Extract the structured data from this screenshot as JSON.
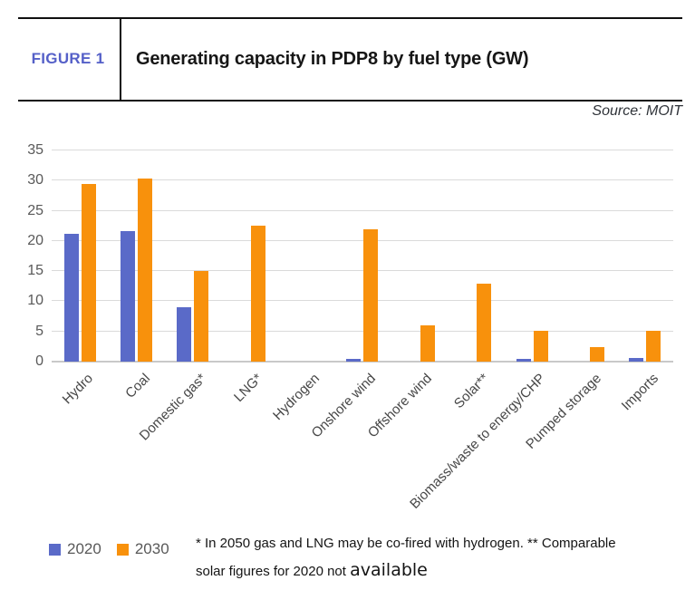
{
  "figure": {
    "label": "FIGURE 1",
    "title": "Generating capacity in PDP8 by fuel type (GW)"
  },
  "source_note": "Source: MOIT",
  "chart_data": {
    "type": "bar",
    "title": "Generating capacity in PDP8 by fuel type (GW)",
    "categories": [
      "Hydro",
      "Coal",
      "Domestic gas*",
      "LNG*",
      "Hydrogen",
      "Onshore wind",
      "Offshore wind",
      "Solar**",
      "Biomass/waste to energy/CHP",
      "Pumped storage",
      "Imports"
    ],
    "series": [
      {
        "name": "2020",
        "color": "#5a6ac8",
        "values": [
          21.2,
          21.6,
          9.0,
          0,
          0,
          0.5,
          0,
          0,
          0.4,
          0,
          0.6
        ]
      },
      {
        "name": "2030",
        "color": "#f8910c",
        "values": [
          29.4,
          30.3,
          15.0,
          22.6,
          0,
          21.9,
          6.0,
          12.9,
          5.1,
          2.4,
          5.1
        ]
      }
    ],
    "xlabel": "",
    "ylabel": "",
    "ylim": [
      0,
      35
    ],
    "ytick_step": 5,
    "grid": true,
    "legend_position": "bottom-left",
    "colors": {
      "gridline": "#dadada",
      "axis_line": "#c9c9c9",
      "y_tick_text": "#595959",
      "x_tick_text": "#474747",
      "figure_label": "#5560c8"
    }
  },
  "footnote": {
    "line1": "* In 2050 gas and LNG may be co-fired with hydrogen. ** Comparable",
    "line2_text": "solar figures for 2020 not ",
    "line2_emphasis": "available"
  }
}
